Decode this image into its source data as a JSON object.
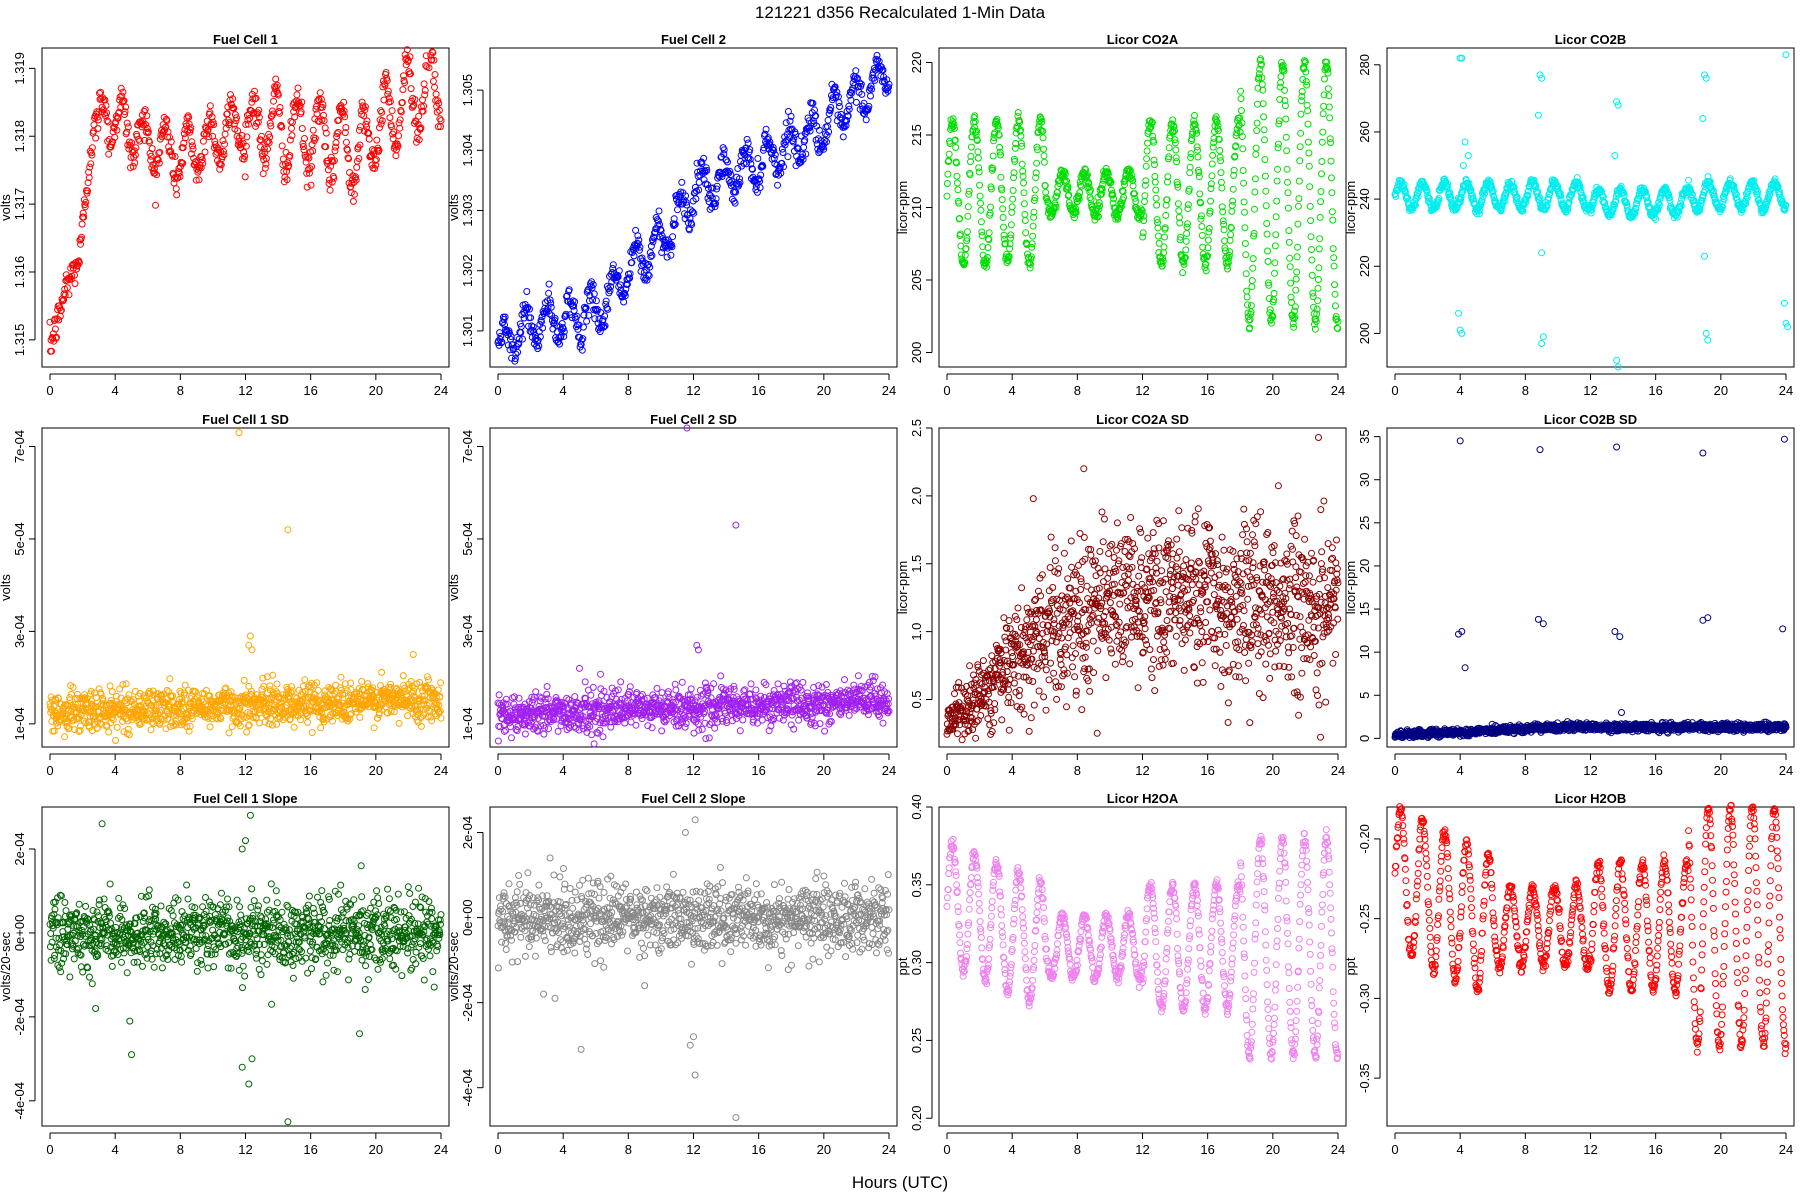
{
  "figure": {
    "title": "121221   d356   Recalculated 1-Min Data",
    "xlabel": "Hours (UTC)"
  },
  "chart_data": [
    {
      "id": "fc1",
      "type": "scatter",
      "title": "Fuel Cell 1",
      "ylabel": "volts",
      "color": "#ff0000",
      "xlim": [
        0,
        24
      ],
      "ylim": [
        1.3146,
        1.3193
      ],
      "xticks": [
        0,
        4,
        8,
        12,
        16,
        20,
        24
      ],
      "yticks": [
        {
          "v": 1.315,
          "label": "1.315"
        },
        {
          "v": 1.316,
          "label": "1.316"
        },
        {
          "v": 1.317,
          "label": "1.317"
        },
        {
          "v": 1.318,
          "label": "1.318"
        },
        {
          "v": 1.319,
          "label": "1.319"
        }
      ],
      "gen": {
        "kind": "fc1",
        "noise": 0.00013,
        "n": 720
      }
    },
    {
      "id": "fc2",
      "type": "scatter",
      "title": "Fuel Cell 2",
      "ylabel": "volts",
      "color": "#0000ff",
      "xlim": [
        0,
        24
      ],
      "ylim": [
        1.3004,
        1.3057
      ],
      "xticks": [
        0,
        4,
        8,
        12,
        16,
        20,
        24
      ],
      "yticks": [
        {
          "v": 1.301,
          "label": "1.301"
        },
        {
          "v": 1.302,
          "label": "1.302"
        },
        {
          "v": 1.303,
          "label": "1.303"
        },
        {
          "v": 1.304,
          "label": "1.304"
        },
        {
          "v": 1.305,
          "label": "1.305"
        }
      ],
      "gen": {
        "kind": "fc2",
        "noise": 0.00012,
        "n": 720
      }
    },
    {
      "id": "co2a",
      "type": "scatter",
      "title": "Licor CO2A",
      "ylabel": "licor-ppm",
      "color": "#00dd00",
      "xlim": [
        0,
        24
      ],
      "ylim": [
        199,
        221
      ],
      "xticks": [
        0,
        4,
        8,
        12,
        16,
        20,
        24
      ],
      "yticks": [
        {
          "v": 200,
          "label": "200"
        },
        {
          "v": 205,
          "label": "205"
        },
        {
          "v": 210,
          "label": "210"
        },
        {
          "v": 215,
          "label": "215"
        },
        {
          "v": 220,
          "label": "220"
        }
      ],
      "gen": {
        "kind": "osc",
        "base": 211,
        "amp": [
          5,
          1.5,
          5,
          9
        ],
        "period": 1.35,
        "noise": 0.25,
        "n": 900
      }
    },
    {
      "id": "co2b",
      "type": "scatter",
      "title": "Licor CO2B",
      "ylabel": "licor-ppm",
      "color": "#00eeee",
      "xlim": [
        0,
        24
      ],
      "ylim": [
        190,
        285
      ],
      "xticks": [
        0,
        4,
        8,
        12,
        16,
        20,
        24
      ],
      "yticks": [
        {
          "v": 200,
          "label": "200"
        },
        {
          "v": 220,
          "label": "220"
        },
        {
          "v": 240,
          "label": "240"
        },
        {
          "v": 260,
          "label": "260"
        },
        {
          "v": 280,
          "label": "280"
        }
      ],
      "gen": {
        "kind": "co2b",
        "base": 241,
        "amp": 4,
        "period": 1.35,
        "noise": 0.6,
        "n": 900,
        "outliers": [
          [
            4.0,
            282
          ],
          [
            4.1,
            282
          ],
          [
            3.9,
            206
          ],
          [
            4.0,
            201
          ],
          [
            4.1,
            200
          ],
          [
            4.3,
            257
          ],
          [
            4.5,
            253
          ],
          [
            4.2,
            250
          ],
          [
            8.9,
            277
          ],
          [
            9.0,
            276
          ],
          [
            8.8,
            265
          ],
          [
            9.0,
            224
          ],
          [
            9.1,
            199
          ],
          [
            9.0,
            197
          ],
          [
            13.6,
            269
          ],
          [
            13.7,
            268
          ],
          [
            13.5,
            253
          ],
          [
            13.6,
            192
          ],
          [
            13.7,
            190
          ],
          [
            19.0,
            277
          ],
          [
            19.1,
            276
          ],
          [
            18.9,
            264
          ],
          [
            19.0,
            223
          ],
          [
            19.1,
            200
          ],
          [
            19.2,
            198
          ],
          [
            24.0,
            283
          ],
          [
            23.9,
            209
          ],
          [
            24.0,
            203
          ],
          [
            24.1,
            202
          ]
        ]
      }
    },
    {
      "id": "fc1sd",
      "type": "scatter",
      "title": "Fuel Cell 1 SD",
      "ylabel": "volts",
      "color": "#ffa500",
      "xlim": [
        0,
        24
      ],
      "ylim": [
        5e-05,
        0.00074
      ],
      "xticks": [
        0,
        4,
        8,
        12,
        16,
        20,
        24
      ],
      "yticks": [
        {
          "v": 0.0001,
          "label": "1e-04"
        },
        {
          "v": 0.0003,
          "label": "3e-04"
        },
        {
          "v": 0.0005,
          "label": "5e-04"
        },
        {
          "v": 0.0007,
          "label": "7e-04"
        }
      ],
      "gen": {
        "kind": "sd",
        "start": 0.000125,
        "end": 0.000155,
        "noise": 2.2e-05,
        "n": 1100,
        "outliers": [
          [
            11.6,
            0.00073
          ],
          [
            14.6,
            0.00052
          ],
          [
            12.3,
            0.00029
          ],
          [
            12.2,
            0.00027
          ],
          [
            12.4,
            0.00026
          ],
          [
            22.3,
            0.00025
          ]
        ]
      }
    },
    {
      "id": "fc2sd",
      "type": "scatter",
      "title": "Fuel Cell 2 SD",
      "ylabel": "volts",
      "color": "#a020f0",
      "xlim": [
        0,
        24
      ],
      "ylim": [
        5e-05,
        0.00074
      ],
      "xticks": [
        0,
        4,
        8,
        12,
        16,
        20,
        24
      ],
      "yticks": [
        {
          "v": 0.0001,
          "label": "1e-04"
        },
        {
          "v": 0.0003,
          "label": "3e-04"
        },
        {
          "v": 0.0005,
          "label": "5e-04"
        },
        {
          "v": 0.0007,
          "label": "7e-04"
        }
      ],
      "gen": {
        "kind": "sd",
        "start": 0.00012,
        "end": 0.00015,
        "noise": 2.2e-05,
        "n": 1100,
        "outliers": [
          [
            11.6,
            0.00074
          ],
          [
            14.6,
            0.00053
          ],
          [
            12.2,
            0.00027
          ],
          [
            12.3,
            0.00026
          ],
          [
            5.0,
            0.00022
          ]
        ]
      }
    },
    {
      "id": "co2asd",
      "type": "scatter",
      "title": "Licor CO2A SD",
      "ylabel": "licor-ppm",
      "color": "#8b0000",
      "xlim": [
        0,
        24
      ],
      "ylim": [
        0.15,
        2.5
      ],
      "xticks": [
        0,
        4,
        8,
        12,
        16,
        20,
        24
      ],
      "yticks": [
        {
          "v": 0.5,
          "label": "0.5"
        },
        {
          "v": 1.0,
          "label": "1.0"
        },
        {
          "v": 1.5,
          "label": "1.5"
        },
        {
          "v": 2.0,
          "label": "2.0"
        },
        {
          "v": 2.5,
          "label": "2.5"
        }
      ],
      "gen": {
        "kind": "co2asd",
        "n": 1300,
        "outliers": [
          [
            22.8,
            2.43
          ],
          [
            5.3,
            1.98
          ],
          [
            8.4,
            2.2
          ]
        ]
      }
    },
    {
      "id": "co2bsd",
      "type": "scatter",
      "title": "Licor CO2B SD",
      "ylabel": "licor-ppm",
      "color": "#000080",
      "xlim": [
        0,
        24
      ],
      "ylim": [
        -1,
        36
      ],
      "xticks": [
        0,
        4,
        8,
        12,
        16,
        20,
        24
      ],
      "yticks": [
        {
          "v": 0,
          "label": "0"
        },
        {
          "v": 5,
          "label": "5"
        },
        {
          "v": 10,
          "label": "10"
        },
        {
          "v": 15,
          "label": "15"
        },
        {
          "v": 20,
          "label": "20"
        },
        {
          "v": 25,
          "label": "25"
        },
        {
          "v": 30,
          "label": "30"
        },
        {
          "v": 35,
          "label": "35"
        }
      ],
      "gen": {
        "kind": "co2bsd",
        "n": 1300,
        "outliers": [
          [
            4.0,
            34.5
          ],
          [
            3.9,
            12.1
          ],
          [
            4.1,
            12.4
          ],
          [
            4.3,
            8.2
          ],
          [
            8.9,
            33.5
          ],
          [
            8.8,
            13.8
          ],
          [
            9.1,
            13.3
          ],
          [
            13.6,
            33.8
          ],
          [
            13.5,
            12.4
          ],
          [
            13.8,
            11.8
          ],
          [
            18.9,
            33.1
          ],
          [
            18.9,
            13.7
          ],
          [
            19.2,
            14.0
          ],
          [
            23.9,
            34.7
          ],
          [
            23.8,
            12.7
          ],
          [
            13.9,
            3.0
          ]
        ]
      }
    },
    {
      "id": "fc1sl",
      "type": "scatter",
      "title": "Fuel Cell 1 Slope",
      "ylabel": "volts/20-sec",
      "color": "#006400",
      "xlim": [
        0,
        24
      ],
      "ylim": [
        -0.00046,
        0.0003
      ],
      "xticks": [
        0,
        4,
        8,
        12,
        16,
        20,
        24
      ],
      "yticks": [
        {
          "v": -0.0004,
          "label": "-4e-04"
        },
        {
          "v": -0.0002,
          "label": "-2e-04"
        },
        {
          "v": 0,
          "label": "0e+00"
        },
        {
          "v": 0.0002,
          "label": "2e-04"
        }
      ],
      "gen": {
        "kind": "slope",
        "noise": 4.2e-05,
        "n": 1100,
        "outliers": [
          [
            3.2,
            0.00026
          ],
          [
            12.3,
            0.00028
          ],
          [
            12.0,
            0.00022
          ],
          [
            11.8,
            0.0002
          ],
          [
            19.1,
            0.00016
          ],
          [
            2.8,
            -0.00018
          ],
          [
            5.0,
            -0.00029
          ],
          [
            4.9,
            -0.00021
          ],
          [
            11.8,
            -0.00032
          ],
          [
            12.2,
            -0.00036
          ],
          [
            12.4,
            -0.0003
          ],
          [
            14.6,
            -0.00045
          ],
          [
            19.0,
            -0.00024
          ],
          [
            13.6,
            -0.00017
          ]
        ]
      }
    },
    {
      "id": "fc2sl",
      "type": "scatter",
      "title": "Fuel Cell 2 Slope",
      "ylabel": "volts/20-sec",
      "color": "#888888",
      "xlim": [
        0,
        24
      ],
      "ylim": [
        -0.00049,
        0.00026
      ],
      "xticks": [
        0,
        4,
        8,
        12,
        16,
        20,
        24
      ],
      "yticks": [
        {
          "v": -0.0004,
          "label": "-4e-04"
        },
        {
          "v": -0.0002,
          "label": "-2e-04"
        },
        {
          "v": 0,
          "label": "0e+00"
        },
        {
          "v": 0.0002,
          "label": "2e-04"
        }
      ],
      "gen": {
        "kind": "slope",
        "noise": 4.2e-05,
        "n": 1100,
        "outliers": [
          [
            12.1,
            0.00023
          ],
          [
            11.5,
            0.0002
          ],
          [
            3.2,
            0.00014
          ],
          [
            2.8,
            -0.00018
          ],
          [
            5.1,
            -0.00031
          ],
          [
            3.5,
            -0.00019
          ],
          [
            11.8,
            -0.0003
          ],
          [
            12.1,
            -0.00037
          ],
          [
            12.0,
            -0.00028
          ],
          [
            14.6,
            -0.00047
          ],
          [
            9.0,
            -0.00016
          ]
        ]
      }
    },
    {
      "id": "h2oa",
      "type": "scatter",
      "title": "Licor H2OA",
      "ylabel": "ppt",
      "color": "#ee82ee",
      "xlim": [
        0,
        24
      ],
      "ylim": [
        0.195,
        0.4
      ],
      "xticks": [
        0,
        4,
        8,
        12,
        16,
        20,
        24
      ],
      "yticks": [
        {
          "v": 0.2,
          "label": "0.20"
        },
        {
          "v": 0.25,
          "label": "0.25"
        },
        {
          "v": 0.3,
          "label": "0.30"
        },
        {
          "v": 0.35,
          "label": "0.35"
        },
        {
          "v": 0.4,
          "label": "0.40"
        }
      ],
      "gen": {
        "kind": "h2o",
        "base": 0.31,
        "top": 0.338,
        "amp": [
          0.04,
          0.02,
          0.04,
          0.07
        ],
        "period": 1.35,
        "noise": 0.002,
        "n": 900
      }
    },
    {
      "id": "h2ob",
      "type": "scatter",
      "title": "Licor H2OB",
      "ylabel": "ppt",
      "color": "#ff0000",
      "xlim": [
        0,
        24
      ],
      "ylim": [
        -0.38,
        -0.18
      ],
      "xticks": [
        0,
        4,
        8,
        12,
        16,
        20,
        24
      ],
      "yticks": [
        {
          "v": -0.35,
          "label": "-0.35"
        },
        {
          "v": -0.3,
          "label": "-0.30"
        },
        {
          "v": -0.25,
          "label": "-0.25"
        },
        {
          "v": -0.2,
          "label": "-0.20"
        }
      ],
      "gen": {
        "kind": "h2o",
        "base": -0.255,
        "top": -0.225,
        "amp": [
          0.045,
          0.025,
          0.04,
          0.075
        ],
        "period": 1.35,
        "noise": 0.002,
        "n": 900
      }
    }
  ]
}
